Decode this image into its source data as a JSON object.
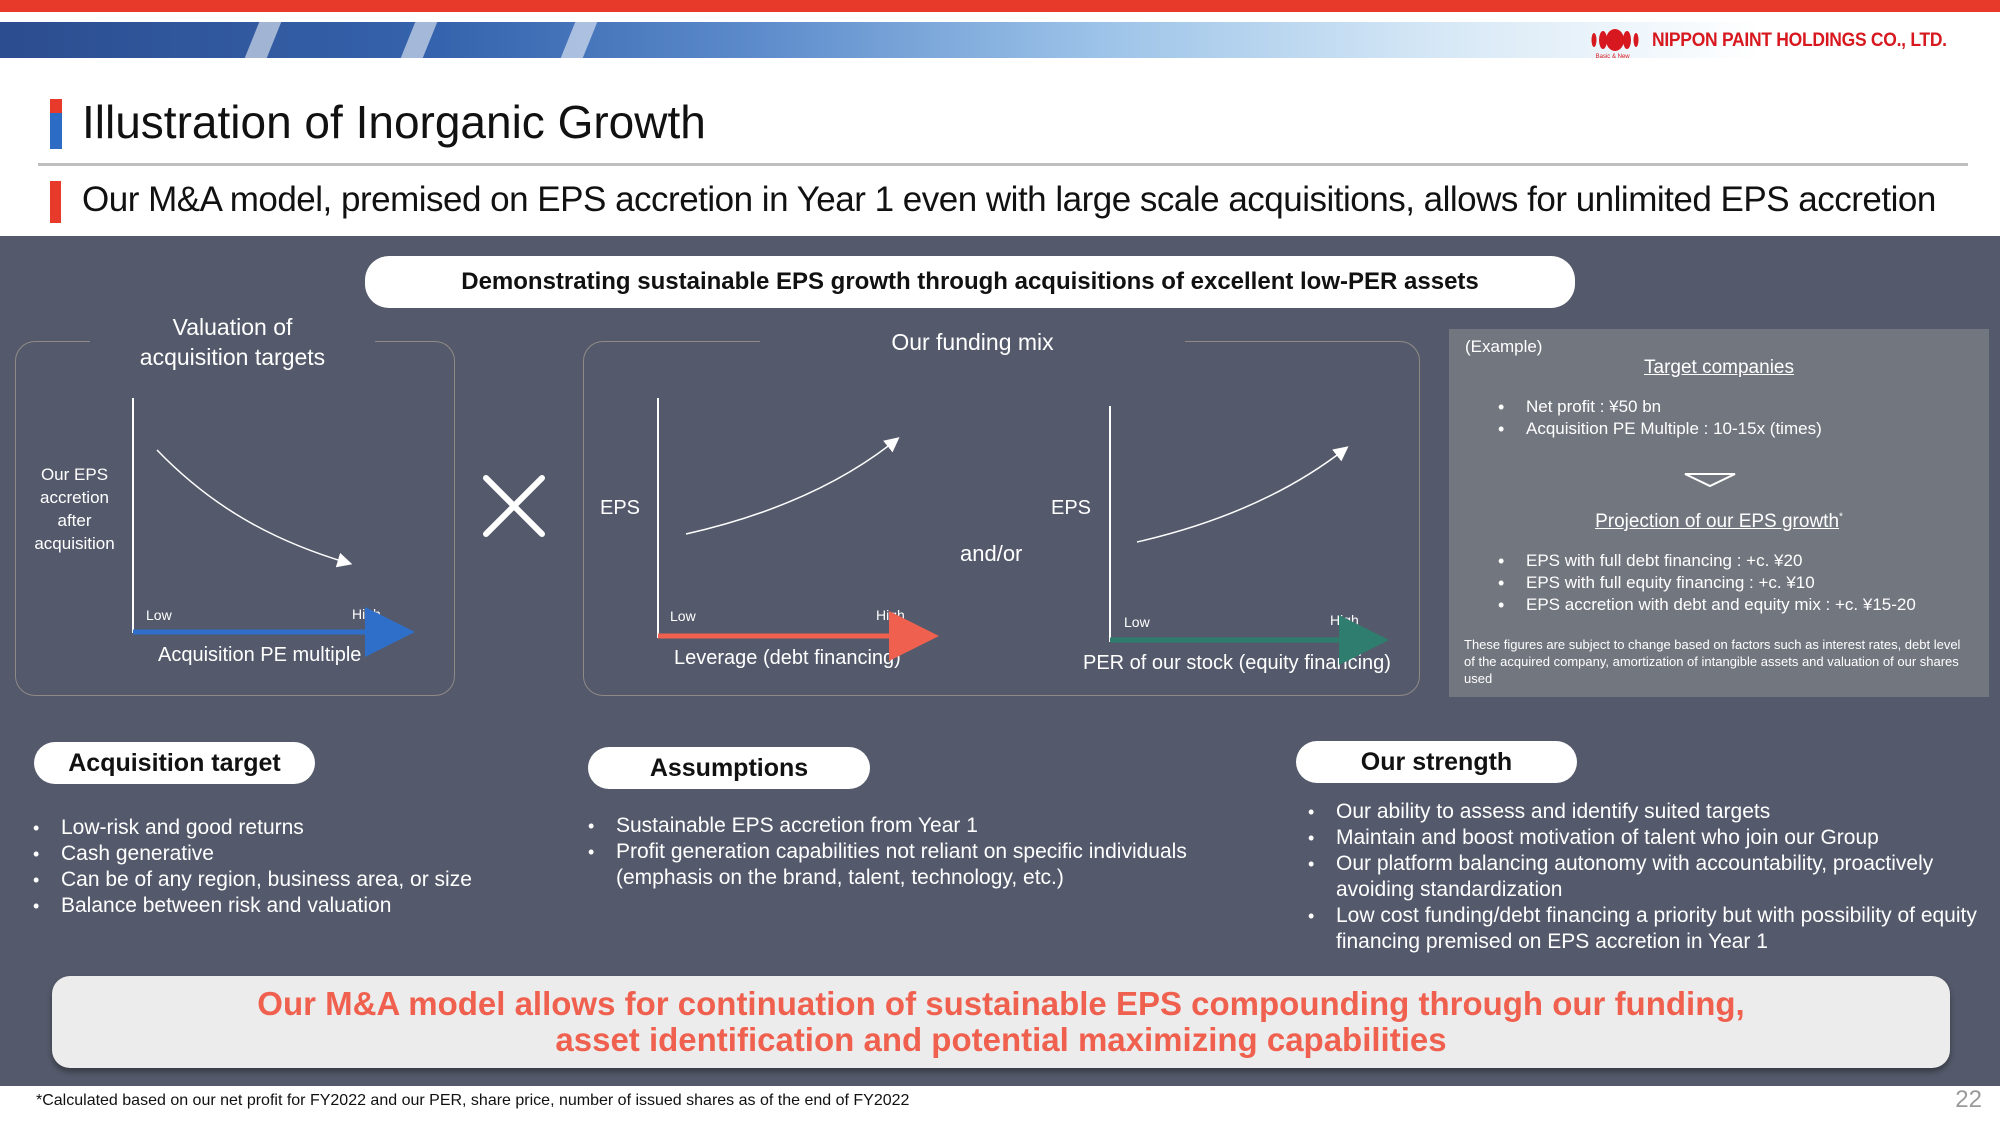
{
  "header": {
    "company_name": "NIPPON PAINT HOLDINGS CO., LTD.",
    "logo_tagline": "Basic & New",
    "brand_red": "#e83a2a",
    "brand_blue": "#2c6cc4"
  },
  "page_title": "Illustration of Inorganic Growth",
  "subtitle": "Our M&A model, premised on EPS accretion in Year 1 even with large scale acquisitions, allows for unlimited EPS accretion",
  "headline": "Demonstrating sustainable EPS growth through acquisitions of excellent low-PER assets",
  "valuation_chart": {
    "title_line1": "Valuation of",
    "title_line2": "acquisition targets",
    "y_label": [
      "Our EPS",
      "accretion",
      "after",
      "acquisition"
    ],
    "x_low": "Low",
    "x_high": "High",
    "x_label": "Acquisition PE multiple",
    "axis_color": "#2f6fc9"
  },
  "times_symbol": "×",
  "funding": {
    "title": "Our funding mix",
    "and_or": "and/or",
    "debt_chart": {
      "y_label": "EPS",
      "x_low": "Low",
      "x_high": "High",
      "x_label": "Leverage (debt financing)",
      "axis_color": "#f0604f"
    },
    "equity_chart": {
      "y_label": "EPS",
      "x_low": "Low",
      "x_high": "High",
      "x_label": "PER of our stock (equity financing)",
      "axis_color": "#2e7d6e"
    }
  },
  "example": {
    "tag": "(Example)",
    "target_heading": "Target companies",
    "target_items": [
      "Net profit : ¥50 bn",
      "Acquisition PE Multiple : 10-15x (times)"
    ],
    "projection_heading": "Projection of our EPS growth",
    "projection_mark": "*",
    "projection_items": [
      "EPS with full debt financing : +c. ¥20",
      "EPS with full equity financing : +c. ¥10",
      "EPS accretion with debt and equity mix : +c. ¥15-20"
    ],
    "note": "These figures are subject to change based on factors such as interest rates, debt level of the acquired company, amortization of intangible assets and valuation of our shares used"
  },
  "acquisition_target": {
    "label": "Acquisition target",
    "items": [
      "Low-risk and good returns",
      "Cash generative",
      "Can be of any region, business area, or size",
      "Balance between risk and valuation"
    ]
  },
  "assumptions": {
    "label": "Assumptions",
    "items": [
      "Sustainable EPS accretion from Year 1",
      "Profit generation capabilities not reliant on specific individuals (emphasis on the brand, talent, technology, etc.)"
    ]
  },
  "our_strength": {
    "label": "Our strength",
    "items": [
      "Our ability to assess and identify suited targets",
      "Maintain and boost motivation of talent who join our Group",
      "Our platform balancing autonomy with accountability, proactively avoiding standardization",
      "Low cost funding/debt financing a priority but with possibility of equity financing premised on EPS accretion in Year 1"
    ]
  },
  "conclusion": {
    "line1": "Our M&A model allows for continuation of sustainable EPS compounding through our funding,",
    "line2": "asset identification and potential maximizing capabilities"
  },
  "footnote": "*Calculated based on our net profit for FY2022 and our PER, share price, number of issued shares as of the end of FY2022",
  "page_number": "22"
}
